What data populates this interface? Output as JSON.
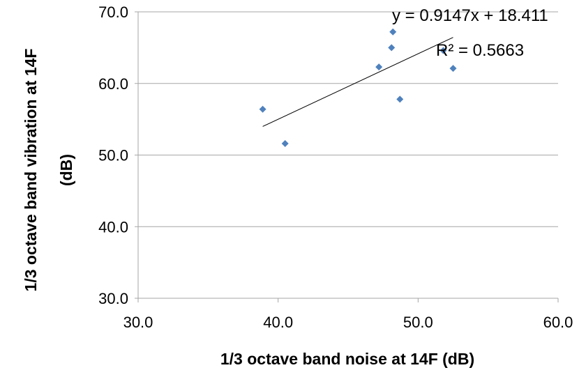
{
  "chart_data": {
    "type": "scatter",
    "xlabel": "1/3 octave band noise at 14F (dB)",
    "ylabel_line1": "1/3 octave band vibration at 14F",
    "ylabel_line2": "(dB)",
    "xlim": [
      30,
      60
    ],
    "ylim": [
      30,
      70
    ],
    "x_ticks": [
      30,
      40,
      50,
      60
    ],
    "y_ticks": [
      30,
      40,
      50,
      60,
      70
    ],
    "x_tick_labels": [
      "30.0",
      "40.0",
      "50.0",
      "60.0"
    ],
    "y_tick_labels": [
      "30.0",
      "40.0",
      "50.0",
      "60.0",
      "70.0"
    ],
    "grid": "horizontal",
    "marker_color": "#4f81bd",
    "points": [
      {
        "x": 38.9,
        "y": 56.4
      },
      {
        "x": 40.5,
        "y": 51.6
      },
      {
        "x": 47.2,
        "y": 62.3
      },
      {
        "x": 48.1,
        "y": 65.0
      },
      {
        "x": 48.2,
        "y": 67.2
      },
      {
        "x": 48.7,
        "y": 57.8
      },
      {
        "x": 51.8,
        "y": 64.6
      },
      {
        "x": 52.5,
        "y": 62.1
      }
    ],
    "trendline": {
      "type": "linear",
      "slope": 0.9147,
      "intercept": 18.411,
      "x_range": [
        38.9,
        52.5
      ],
      "equation_label": "y = 0.9147x + 18.411",
      "r2_label": "R² = 0.5663"
    }
  }
}
